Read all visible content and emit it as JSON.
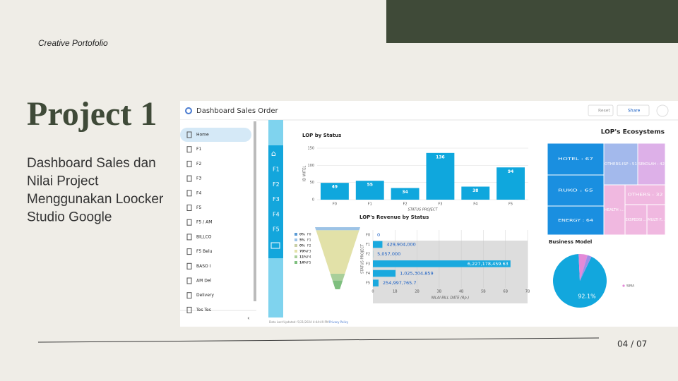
{
  "slide": {
    "label": "Creative Portofolio",
    "title": "Project 1",
    "description": [
      "Dashboard Sales dan",
      "Nilai Project",
      "Menggunakan Loocker",
      "Studio Google"
    ],
    "page": "04 / 07"
  },
  "dashboard": {
    "title": "Dashboard Sales Order",
    "buttons": [
      "Reset",
      "Share"
    ],
    "sidebar": [
      "Home",
      "F1",
      "F2",
      "F3",
      "F4",
      "F5",
      "F5 / AM",
      "BILLCO",
      "F5 Belu",
      "BASO I",
      "AM Del",
      "Delivery",
      "Tes Tes"
    ],
    "tabs": [
      "F1",
      "F2",
      "F3",
      "F4",
      "F5"
    ],
    "footer": {
      "updated": "Data Last Updated: 5/21/2024 4:44:49 PM",
      "privacy": "Privacy Policy"
    }
  },
  "chart_data": [
    {
      "type": "bar",
      "title": "LOP by Status",
      "categories": [
        "F0",
        "F1",
        "F2",
        "F3",
        "F4",
        "F5"
      ],
      "values": [
        49,
        55,
        34,
        136,
        38,
        94
      ],
      "color": "#0fa7dd",
      "ylim": [
        0,
        150
      ],
      "yticks": [
        0,
        50,
        100,
        150
      ],
      "ylabel": "ID WITEL",
      "xlabel": "STATUS PROJECT",
      "grid": true
    },
    {
      "type": "funnel",
      "title": "LOP's Revenue by Status",
      "categories": [
        "F0",
        "F1",
        "F2",
        "F3",
        "F4",
        "F5"
      ],
      "values": [
        0,
        5,
        0,
        70,
        11,
        14
      ],
      "value_labels": [
        "0%",
        "5%",
        "0%",
        "70%",
        "11%",
        "14%"
      ],
      "colors": [
        "#5b9bd5",
        "#9dc3e6",
        "#c9cfa6",
        "#e2e1a8",
        "#a9cf9a",
        "#7fbf7f"
      ]
    },
    {
      "type": "hbar",
      "categories": [
        "F0",
        "F1",
        "F2",
        "F3",
        "F4",
        "F5"
      ],
      "values": [
        0,
        429904000,
        5057000,
        6227178459.63,
        1025304859,
        254997765.7
      ],
      "value_labels": [
        "0",
        "429,904,000",
        "5,057,000",
        "6,227,178,459.63",
        "1,025,304,859",
        "254,997,765.7"
      ],
      "xlim": [
        0,
        7000000000
      ],
      "xticks": [
        0,
        {
          "value": 1000000000,
          "label": "1B"
        },
        {
          "value": 2000000000,
          "label": "2B"
        },
        {
          "value": 3000000000,
          "label": "3B"
        },
        {
          "value": 4000000000,
          "label": "4B"
        },
        {
          "value": 5000000000,
          "label": "5B"
        },
        {
          "value": 6000000000,
          "label": "6B"
        },
        {
          "value": 7000000000,
          "label": "7B"
        }
      ],
      "ylabel": "STATUS PROJECT",
      "xlabel": "NILAI BILL DATE (Rp.)",
      "color": "#1aa9de"
    },
    {
      "type": "treemap",
      "title": "LOP's Ecosystems",
      "items": [
        {
          "label": "HOTEL : 67",
          "value": 67,
          "color": "#1a8fe0"
        },
        {
          "label": "RUKO : 65",
          "value": 65,
          "color": "#1a8fe0"
        },
        {
          "label": "ENERGY : 64",
          "value": 64,
          "color": "#1a8fe0"
        },
        {
          "label": "OTHERS-ISP : 51",
          "value": 51,
          "color": "#a3b9ec"
        },
        {
          "label": "SEKOLAH : 42",
          "value": 42,
          "color": "#ddb0e8"
        },
        {
          "label": "OTHERS : 32",
          "value": 32,
          "color": "#f0b8e0"
        },
        {
          "label": "HEALTH :...",
          "value": 28,
          "color": "#f0b8e0"
        },
        {
          "label": "EKSPEDISI ...",
          "value": 20,
          "color": "#f0b8e0"
        },
        {
          "label": "MULTI F...",
          "value": 15,
          "color": "#f0b8e0"
        }
      ]
    },
    {
      "type": "pie",
      "title": "Business Model",
      "slices": [
        {
          "value": 92.1,
          "label": "92.1%",
          "color": "#12a7dd"
        },
        {
          "name": "SIMA",
          "value": 5.4,
          "color": "#e38ad8"
        },
        {
          "value": 2.5,
          "color": "#9b8ee8"
        }
      ]
    }
  ]
}
